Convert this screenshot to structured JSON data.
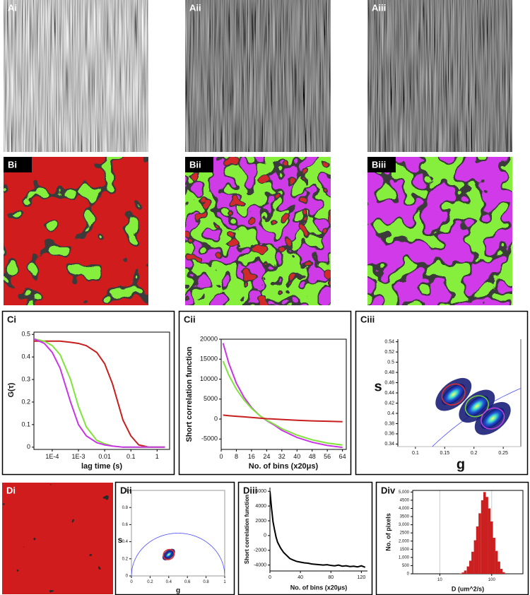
{
  "image_panels": [
    "Ai",
    "Aii",
    "Aiii",
    "Bi",
    "Bii",
    "Biii",
    "Di"
  ],
  "chart_data": [
    {
      "panel": "Ci",
      "type": "line",
      "x_scale": "log",
      "ylabel": "G(τ)",
      "xlabel": "lag time (s)",
      "x": [
        2e-05,
        5e-05,
        0.0001,
        0.0002,
        0.0005,
        0.001,
        0.002,
        0.005,
        0.01,
        0.02,
        0.05,
        0.1,
        0.2,
        0.5,
        1,
        2
      ],
      "series": [
        {
          "color": "#c81e1e",
          "values": [
            0.47,
            0.47,
            0.47,
            0.47,
            0.465,
            0.46,
            0.45,
            0.42,
            0.37,
            0.28,
            0.12,
            0.05,
            0.01,
            0,
            0,
            0
          ]
        },
        {
          "color": "#7fe33a",
          "values": [
            0.48,
            0.47,
            0.45,
            0.41,
            0.3,
            0.18,
            0.09,
            0.03,
            0.015,
            0.005,
            0,
            0,
            0,
            0,
            0,
            0
          ]
        },
        {
          "color": "#c934e6",
          "values": [
            0.48,
            0.46,
            0.42,
            0.35,
            0.2,
            0.1,
            0.05,
            0.02,
            0.01,
            0.005,
            0,
            0,
            0,
            0,
            0,
            0
          ]
        }
      ],
      "xlim": [
        2e-05,
        3
      ],
      "ylim": [
        -0.01,
        0.51
      ],
      "xticks": [
        {
          "value": 0.0001,
          "label": "1E-4"
        },
        {
          "value": 0.001,
          "label": "1E-3"
        },
        0.01,
        0.1,
        1
      ],
      "yticks": [
        0,
        0.1,
        0.2,
        0.3,
        0.4,
        0.5
      ]
    },
    {
      "panel": "Cii",
      "type": "line",
      "ylabel": "Short correlation function",
      "xlabel": "No. of bins (x20μs)",
      "x": [
        1,
        4,
        8,
        12,
        16,
        20,
        24,
        28,
        32,
        40,
        48,
        56,
        64
      ],
      "series": [
        {
          "color": "#c934e6",
          "values": [
            19000,
            14000,
            9000,
            5500,
            2900,
            1000,
            -400,
            -1500,
            -2800,
            -4600,
            -5800,
            -6600,
            -7100
          ]
        },
        {
          "color": "#7fe33a",
          "values": [
            14500,
            11000,
            7500,
            4800,
            2700,
            1000,
            -300,
            -1300,
            -2400,
            -4000,
            -5200,
            -6000,
            -6500
          ]
        },
        {
          "color": "#c81e1e",
          "values": [
            1000,
            850,
            700,
            550,
            400,
            250,
            100,
            0,
            -100,
            -300,
            -450,
            -550,
            -650
          ]
        }
      ],
      "xlim": [
        0,
        66
      ],
      "ylim": [
        -7600,
        20000
      ],
      "xticks": [
        0,
        8,
        16,
        24,
        32,
        40,
        48,
        56,
        64
      ],
      "yticks": [
        -5000,
        0,
        5000,
        10000,
        15000,
        20000
      ]
    },
    {
      "panel": "Ciii",
      "type": "phasor",
      "ylabel": "s",
      "xlabel": "g",
      "semicircle": true,
      "clusters": [
        {
          "color": "#e03030",
          "g": 0.165,
          "s": 0.437
        },
        {
          "color": "#70d040",
          "g": 0.205,
          "s": 0.414
        },
        {
          "color": "#c040e0",
          "g": 0.232,
          "s": 0.39
        }
      ],
      "xlim": [
        0.07,
        0.28
      ],
      "ylim": [
        0.335,
        0.545
      ],
      "xticks": [
        0.1,
        0.15,
        0.2,
        0.25
      ],
      "yticks": [
        0.34,
        0.36,
        0.38,
        0.4,
        0.42,
        0.44,
        0.46,
        0.48,
        0.5,
        0.52,
        0.54
      ]
    },
    {
      "panel": "Dii",
      "type": "phasor",
      "ylabel": "s",
      "xlabel": "g",
      "semicircle": true,
      "clusters": [
        {
          "color": "#e03030",
          "g": 0.4,
          "s": 0.25
        }
      ],
      "xlim": [
        0,
        1
      ],
      "ylim": [
        0,
        1
      ],
      "xticks": [
        0,
        0.2,
        0.4,
        0.6,
        0.8,
        1
      ],
      "yticks": [
        0,
        0.2,
        0.4,
        0.6,
        0.8,
        1
      ]
    },
    {
      "panel": "Diii",
      "type": "line",
      "ylabel": "Short correlation function",
      "xlabel": "No. of bins (x20μs)",
      "x": [
        0,
        2,
        4,
        6,
        8,
        10,
        14,
        18,
        22,
        26,
        30,
        35,
        40,
        45,
        50,
        55,
        60,
        65,
        70,
        75,
        80,
        85,
        90,
        95,
        100,
        105,
        110,
        115,
        120,
        125
      ],
      "series": [
        {
          "color": "#000000",
          "values": [
            6000,
            3800,
            1900,
            800,
            -200,
            -900,
            -1700,
            -2300,
            -2700,
            -3100,
            -3300,
            -3500,
            -3600,
            -3700,
            -3750,
            -3850,
            -3900,
            -3950,
            -4000,
            -3950,
            -4050,
            -4100,
            -4000,
            -4150,
            -4100,
            -4200,
            -4150,
            -4250,
            -4100,
            -4300
          ]
        }
      ],
      "xlim": [
        0,
        128
      ],
      "ylim": [
        -4800,
        6500
      ],
      "xticks": [
        0,
        40,
        80,
        120
      ],
      "yticks": [
        -4000,
        -2000,
        0,
        2000,
        4000,
        6000
      ]
    },
    {
      "panel": "Div",
      "type": "bar",
      "x_scale": "log",
      "ylabel": "No. of pixels",
      "xlabel": "D (um^2/s)",
      "grid": true,
      "color": "#cc2020",
      "x": [
        25,
        28,
        31,
        35,
        39,
        43,
        48,
        53,
        59,
        66,
        73,
        81,
        90,
        100,
        111,
        124,
        138,
        153,
        170
      ],
      "values": [
        20,
        80,
        200,
        450,
        800,
        1350,
        2050,
        2900,
        3700,
        4500,
        5000,
        4700,
        4000,
        3200,
        2200,
        1400,
        750,
        300,
        100
      ],
      "xlim": [
        3,
        400
      ],
      "ylim": [
        0,
        5100
      ],
      "xticks": [
        10,
        100
      ],
      "yticks": [
        0,
        500,
        {
          "value": 1000,
          "label": "1,000"
        },
        1500,
        {
          "value": 2000,
          "label": "2,000"
        },
        2500,
        {
          "value": 3000,
          "label": "3,000"
        },
        3500,
        {
          "value": 4000,
          "label": "4,000"
        },
        4500,
        {
          "value": 5000,
          "label": "5,000"
        }
      ]
    }
  ]
}
